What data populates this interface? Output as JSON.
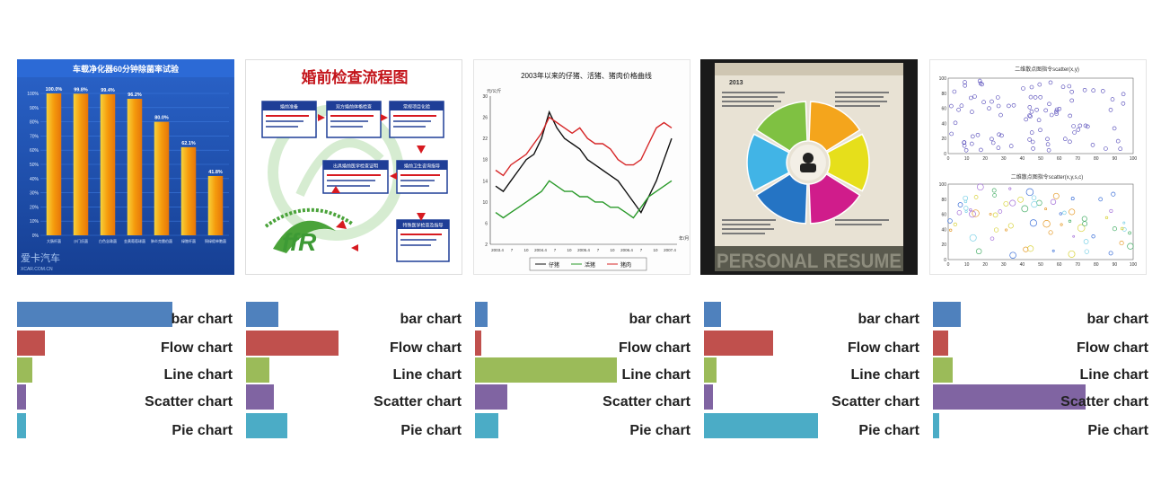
{
  "categories": [
    "bar chart",
    "Flow chart",
    "Line chart",
    "Scatter chart",
    "Pie chart"
  ],
  "colors": [
    "#4f81bd",
    "#c0504d",
    "#9bbb59",
    "#8064a2",
    "#4bacc6"
  ],
  "chart_data": [
    {
      "type": "bar",
      "categories": [
        "bar chart",
        "Flow chart",
        "Line chart",
        "Scatter chart",
        "Pie chart"
      ],
      "values": [
        0.72,
        0.13,
        0.07,
        0.04,
        0.04
      ],
      "xlim": [
        0,
        1
      ]
    },
    {
      "type": "bar",
      "categories": [
        "bar chart",
        "Flow chart",
        "Line chart",
        "Scatter chart",
        "Pie chart"
      ],
      "values": [
        0.15,
        0.43,
        0.11,
        0.13,
        0.19
      ],
      "xlim": [
        0,
        1
      ]
    },
    {
      "type": "bar",
      "categories": [
        "bar chart",
        "Flow chart",
        "Line chart",
        "Scatter chart",
        "Pie chart"
      ],
      "values": [
        0.06,
        0.03,
        0.66,
        0.15,
        0.11
      ],
      "xlim": [
        0,
        1
      ]
    },
    {
      "type": "bar",
      "categories": [
        "bar chart",
        "Flow chart",
        "Line chart",
        "Scatter chart",
        "Pie chart"
      ],
      "values": [
        0.08,
        0.32,
        0.06,
        0.04,
        0.53
      ],
      "xlim": [
        0,
        1
      ]
    },
    {
      "type": "bar",
      "categories": [
        "bar chart",
        "Flow chart",
        "Line chart",
        "Scatter chart",
        "Pie chart"
      ],
      "values": [
        0.13,
        0.07,
        0.09,
        0.71,
        0.03
      ],
      "xlim": [
        0,
        1
      ]
    }
  ],
  "thumbnails": {
    "bar": {
      "title": "车载净化器60分钟除菌率试验",
      "values": [
        100.0,
        99.8,
        99.4,
        96.2,
        80.0,
        62.1,
        41.8
      ],
      "value_labels": [
        "100.0%",
        "99.8%",
        "99.4%",
        "96.2%",
        "80.0%",
        "62.1%",
        "41.8%"
      ],
      "y_ticks": [
        "100%",
        "90%",
        "80%",
        "70%",
        "60%",
        "50%",
        "40%",
        "30%",
        "20%",
        "10%",
        "0%"
      ],
      "x_labels": [
        "大肠杆菌",
        "沙门氏菌",
        "白色念珠菌",
        "金黄葡萄球菌",
        "肺炎克雷伯菌",
        "绿脓杆菌",
        "铜绿假单胞菌"
      ],
      "watermark": "爱卡汽车",
      "watermark_sub": "XCAR.COM.CN"
    },
    "flow": {
      "title": "婚前检查流程图",
      "boxes": [
        "婚前准备",
        "双方婚前体格检查",
        "常规项目化验",
        "出具婚前医学检查证明",
        "婚前卫生咨询指导",
        "特殊医学检查及指导"
      ]
    },
    "line": {
      "title": "2003年以来的仔猪、活猪、猪肉价格曲线",
      "ylabel": "元/公斤",
      "y_ticks": [
        "30",
        "26",
        "22",
        "18",
        "14",
        "10",
        "6",
        "2"
      ],
      "x_labels": [
        "2003.4",
        "7",
        "10",
        "2004.4",
        "7",
        "10",
        "2005.4",
        "7",
        "10",
        "2006.4",
        "7",
        "10",
        "2007.4"
      ],
      "xunit": "年/月",
      "legend": [
        "仔猪",
        "活猪",
        "猪肉"
      ],
      "series_colors": [
        "#111111",
        "#2a9a2a",
        "#d62728"
      ],
      "series": [
        [
          13,
          12,
          14,
          16,
          18,
          19,
          22,
          27,
          24,
          22,
          21,
          20,
          18,
          17,
          16,
          15,
          14,
          12,
          10,
          8,
          11,
          14,
          18,
          22
        ],
        [
          8,
          7,
          8,
          9,
          10,
          11,
          12,
          14,
          13,
          12,
          12,
          11,
          11,
          10,
          10,
          9,
          9,
          8,
          7,
          9,
          11,
          12,
          13,
          14
        ],
        [
          16,
          15,
          17,
          18,
          19,
          21,
          23,
          26,
          25,
          24,
          23,
          24,
          22,
          21,
          21,
          20,
          18,
          17,
          17,
          18,
          21,
          24,
          25,
          24
        ]
      ]
    },
    "pie": {
      "year": "2013",
      "footer": "PERSONAL RESUME",
      "segment_colors": [
        "#f4a51c",
        "#e6df1b",
        "#d01c8b",
        "#2574c4",
        "#41b4e6",
        "#7fc142"
      ]
    },
    "scatter": {
      "title1": "二维散点图指令scatter(x,y)",
      "title2": "二维散点图指令scatter(x,y,s,c)",
      "x_ticks": [
        "0",
        "10",
        "20",
        "30",
        "40",
        "50",
        "60",
        "70",
        "80",
        "90",
        "100"
      ],
      "y_ticks": [
        "100",
        "80",
        "60",
        "40",
        "20",
        "0"
      ]
    }
  }
}
